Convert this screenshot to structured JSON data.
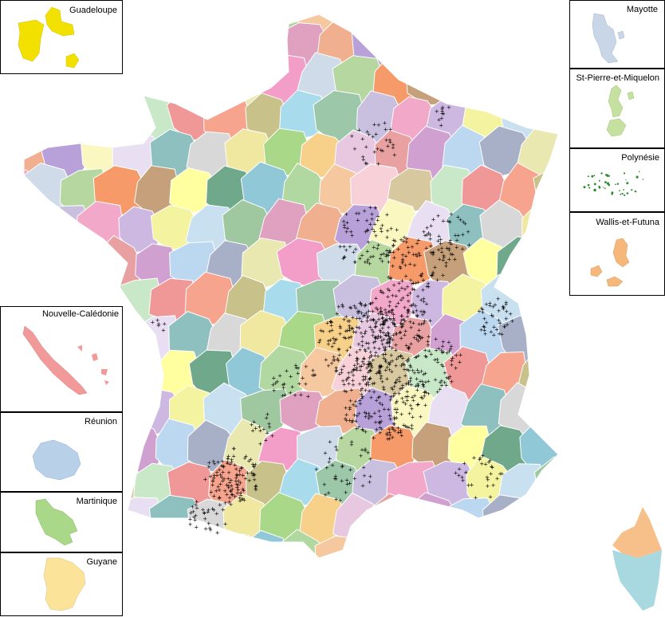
{
  "map": {
    "type": "choropleth-with-points",
    "region": "France (départements)",
    "point_marker": "+",
    "point_color": "#000000"
  },
  "insets": {
    "guadeloupe": {
      "label": "Guadeloupe",
      "color": "#f2e000"
    },
    "mayotte": {
      "label": "Mayotte",
      "color": "#c8d6e8"
    },
    "spm": {
      "label": "St-Pierre-et-Miquelon",
      "color": "#c6e0a0"
    },
    "polynesie": {
      "label": "Polynésie",
      "color": "#2e8b2e"
    },
    "wallis": {
      "label": "Wallis-et-Futuna",
      "color": "#f5b87a"
    },
    "nouvelle_caledonie": {
      "label": "Nouvelle-Calédonie",
      "color": "#f29a9a"
    },
    "reunion": {
      "label": "Réunion",
      "color": "#b8d0e8"
    },
    "martinique": {
      "label": "Martinique",
      "color": "#a8d888"
    },
    "guyane": {
      "label": "Guyane",
      "color": "#fbe39a"
    }
  },
  "palette": [
    "#f29ec8",
    "#fbf7c0",
    "#f7a48e",
    "#cfdbe8",
    "#e8e0f2",
    "#c9c18a",
    "#b6d7a0",
    "#8fc0c0",
    "#a8dcec",
    "#f79a6a",
    "#d8d8d8",
    "#9cc7a8",
    "#c6a07a",
    "#f0e8a0",
    "#c9c0e0",
    "#ffffa0",
    "#a8d888",
    "#f2a8c8",
    "#6fa88a",
    "#f7d08a",
    "#ccb8e0",
    "#90c8d8",
    "#e8c8e0",
    "#f4f4a0",
    "#b0d8a0",
    "#e8a0a0",
    "#c8e0f0",
    "#f6c8a0",
    "#d0a0d0",
    "#a0c8a0",
    "#f8d0d8",
    "#bcd8f0",
    "#e0a0c0",
    "#d8c8a0",
    "#a8b0c8",
    "#f0b090",
    "#c8e8c8",
    "#e8e8b0",
    "#b8a0d8",
    "#f09898"
  ],
  "corsica_colors": [
    "#f7c08a",
    "#a8d8e0"
  ]
}
